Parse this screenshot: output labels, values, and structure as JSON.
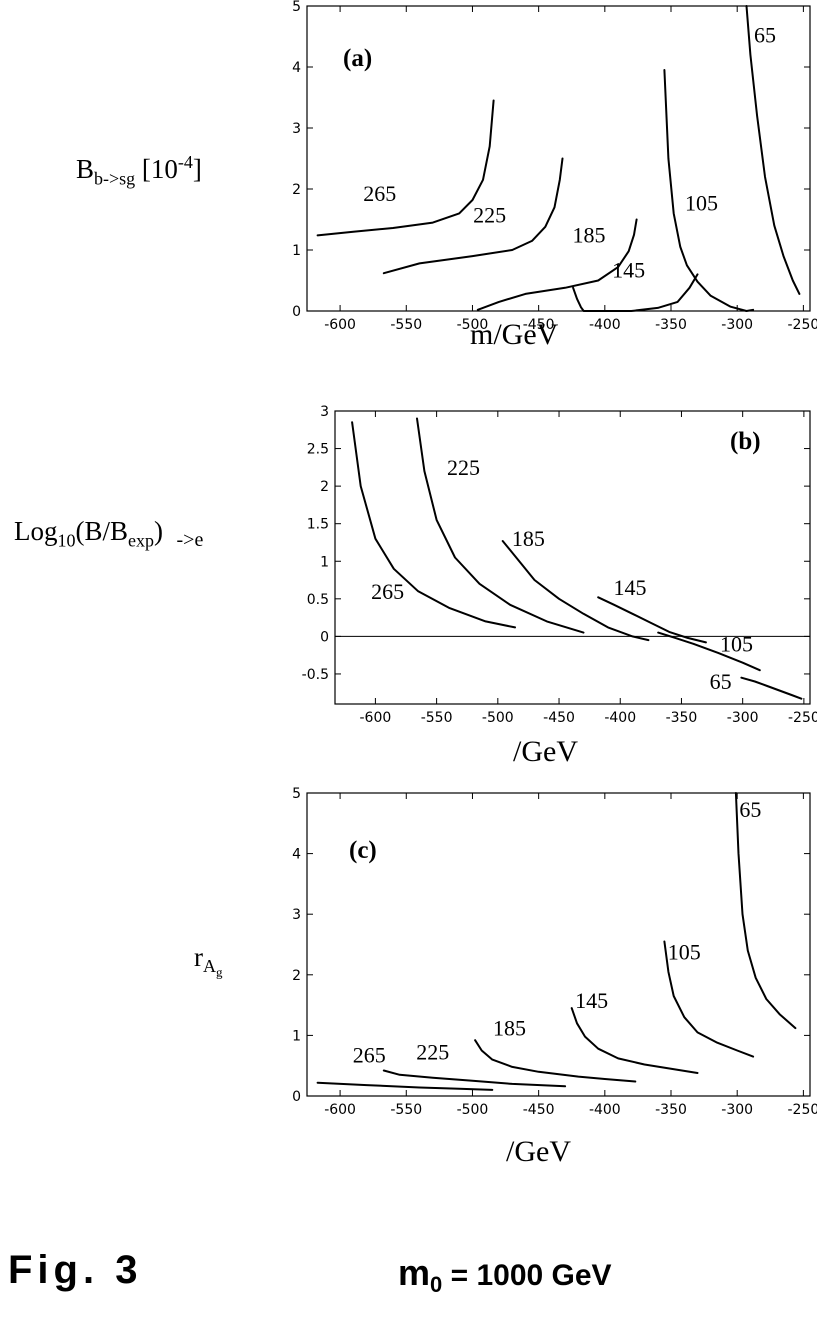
{
  "figure_label": "Fig. 3",
  "m0_label": {
    "symbol": "m",
    "subscript": "0",
    "rest": " = 1000 GeV"
  },
  "chart_data": [
    {
      "type": "line",
      "panel_label": "(a)",
      "ylabel": {
        "main": "B",
        "sub": "b->sg",
        "mid": " [10",
        "sup": "-4",
        "end": "]"
      },
      "xlabel": "m/GeV",
      "xlim": [
        -625,
        -245
      ],
      "ylim": [
        0,
        5
      ],
      "xticks": [
        -600,
        -550,
        -500,
        -450,
        -400,
        -350,
        -300,
        -250
      ],
      "yticks": [
        0,
        1,
        2,
        3,
        4,
        5
      ],
      "ytick_labels": [
        "0",
        "1",
        "2",
        "3",
        "4",
        "5"
      ],
      "series": [
        {
          "name": "265",
          "x": [
            -617,
            -590,
            -560,
            -530,
            -510,
            -500,
            -492,
            -487,
            -484
          ],
          "y": [
            1.24,
            1.3,
            1.36,
            1.45,
            1.6,
            1.82,
            2.15,
            2.7,
            3.45
          ]
        },
        {
          "name": "225",
          "x": [
            -567,
            -540,
            -500,
            -470,
            -455,
            -445,
            -438,
            -434,
            -432
          ],
          "y": [
            0.62,
            0.78,
            0.9,
            1.0,
            1.15,
            1.38,
            1.7,
            2.15,
            2.5
          ]
        },
        {
          "name": "185",
          "x": [
            -496,
            -480,
            -460,
            -430,
            -405,
            -390,
            -382,
            -378,
            -376
          ],
          "y": [
            0.02,
            0.15,
            0.28,
            0.38,
            0.5,
            0.72,
            0.98,
            1.25,
            1.5
          ]
        },
        {
          "name": "145",
          "x": [
            -424,
            -421,
            -418,
            -416,
            -405,
            -380,
            -360,
            -345,
            -336,
            -330
          ],
          "y": [
            0.38,
            0.2,
            0.06,
            0.0,
            0.0,
            0.0,
            0.05,
            0.15,
            0.38,
            0.6
          ]
        },
        {
          "name": "105",
          "x": [
            -355,
            -352,
            -348,
            -343,
            -338,
            -330,
            -320,
            -305,
            -293,
            -288
          ],
          "y": [
            3.95,
            2.5,
            1.6,
            1.05,
            0.75,
            0.48,
            0.25,
            0.07,
            0.0,
            0.02
          ]
        },
        {
          "name": "65",
          "x": [
            -293,
            -290,
            -285,
            -279,
            -272,
            -265,
            -258,
            -253
          ],
          "y": [
            5.0,
            4.2,
            3.2,
            2.2,
            1.4,
            0.9,
            0.5,
            0.28
          ]
        }
      ],
      "curve_labels": [
        {
          "text": "265",
          "x": -570,
          "y": 1.8
        },
        {
          "text": "225",
          "x": -487,
          "y": 1.45
        },
        {
          "text": "185",
          "x": -412,
          "y": 1.12
        },
        {
          "text": "145",
          "x": -382,
          "y": 0.55
        },
        {
          "text": "105",
          "x": -327,
          "y": 1.65
        },
        {
          "text": "65",
          "x": -279,
          "y": 4.4
        }
      ]
    },
    {
      "type": "line",
      "panel_label": "(b)",
      "ylabel": {
        "main": "Log",
        "sub": "10",
        "mid": "(B/B",
        "sub2": "exp",
        "end": ")",
        "tail": "->e"
      },
      "xlabel": "/GeV",
      "xlim": [
        -633,
        -245
      ],
      "ylim": [
        -0.9,
        3.0
      ],
      "xticks": [
        -600,
        -550,
        -500,
        -450,
        -400,
        -350,
        -300,
        -250
      ],
      "yticks": [
        -0.5,
        0,
        0.5,
        1,
        1.5,
        2,
        2.5,
        3
      ],
      "ytick_labels": [
        "-0.5",
        "0",
        "0.5",
        "1",
        "1.5",
        "2",
        "2.5",
        "3"
      ],
      "zero_line": true,
      "series": [
        {
          "name": "265",
          "x": [
            -619,
            -612,
            -600,
            -585,
            -565,
            -540,
            -510,
            -486
          ],
          "y": [
            2.85,
            2.0,
            1.3,
            0.9,
            0.6,
            0.38,
            0.2,
            0.12
          ]
        },
        {
          "name": "225",
          "x": [
            -566,
            -560,
            -550,
            -535,
            -515,
            -490,
            -460,
            -430
          ],
          "y": [
            2.9,
            2.2,
            1.55,
            1.05,
            0.7,
            0.42,
            0.2,
            0.05
          ]
        },
        {
          "name": "185",
          "x": [
            -496,
            -485,
            -470,
            -450,
            -430,
            -410,
            -390,
            -377
          ],
          "y": [
            1.27,
            1.05,
            0.75,
            0.5,
            0.3,
            0.12,
            0.0,
            -0.05
          ]
        },
        {
          "name": "145",
          "x": [
            -418,
            -405,
            -390,
            -375,
            -360,
            -345,
            -330
          ],
          "y": [
            0.52,
            0.42,
            0.3,
            0.18,
            0.06,
            -0.02,
            -0.08
          ]
        },
        {
          "name": "105",
          "x": [
            -369,
            -355,
            -340,
            -320,
            -300,
            -286
          ],
          "y": [
            0.05,
            -0.02,
            -0.1,
            -0.22,
            -0.35,
            -0.45
          ]
        },
        {
          "name": "65",
          "x": [
            -301,
            -290,
            -280,
            -270,
            -260,
            -252
          ],
          "y": [
            -0.55,
            -0.6,
            -0.66,
            -0.72,
            -0.78,
            -0.83
          ]
        }
      ],
      "curve_labels": [
        {
          "text": "265",
          "x": -590,
          "y": 0.5
        },
        {
          "text": "225",
          "x": -528,
          "y": 2.15
        },
        {
          "text": "185",
          "x": -475,
          "y": 1.2
        },
        {
          "text": "145",
          "x": -392,
          "y": 0.55
        },
        {
          "text": "105",
          "x": -305,
          "y": -0.2
        },
        {
          "text": "65",
          "x": -318,
          "y": -0.7
        }
      ]
    },
    {
      "type": "line",
      "panel_label": "(c)",
      "ylabel": {
        "main": "r",
        "sub": "A",
        "sub2": "g"
      },
      "xlabel": "/GeV",
      "xlim": [
        -625,
        -245
      ],
      "ylim": [
        0,
        5
      ],
      "xticks": [
        -600,
        -550,
        -500,
        -450,
        -400,
        -350,
        -300,
        -250
      ],
      "yticks": [
        0,
        1,
        2,
        3,
        4,
        5
      ],
      "ytick_labels": [
        "0",
        "1",
        "2",
        "3",
        "4",
        "5"
      ],
      "series": [
        {
          "name": "265",
          "x": [
            -617,
            -580,
            -540,
            -510,
            -485
          ],
          "y": [
            0.22,
            0.18,
            0.14,
            0.12,
            0.1
          ]
        },
        {
          "name": "225",
          "x": [
            -567,
            -555,
            -530,
            -500,
            -470,
            -430
          ],
          "y": [
            0.42,
            0.35,
            0.3,
            0.25,
            0.2,
            0.16
          ]
        },
        {
          "name": "185",
          "x": [
            -498,
            -493,
            -485,
            -470,
            -450,
            -420,
            -400,
            -377
          ],
          "y": [
            0.92,
            0.75,
            0.6,
            0.48,
            0.4,
            0.32,
            0.28,
            0.24
          ]
        },
        {
          "name": "145",
          "x": [
            -425,
            -421,
            -415,
            -405,
            -390,
            -370,
            -350,
            -330
          ],
          "y": [
            1.45,
            1.2,
            0.98,
            0.78,
            0.62,
            0.52,
            0.45,
            0.38
          ]
        },
        {
          "name": "105",
          "x": [
            -355,
            -352,
            -348,
            -340,
            -330,
            -315,
            -300,
            -288
          ],
          "y": [
            2.55,
            2.05,
            1.65,
            1.3,
            1.05,
            0.88,
            0.75,
            0.65
          ]
        },
        {
          "name": "65",
          "x": [
            -301,
            -299,
            -296,
            -292,
            -286,
            -278,
            -268,
            -256
          ],
          "y": [
            5.0,
            4.0,
            3.0,
            2.4,
            1.95,
            1.6,
            1.35,
            1.12
          ]
        }
      ],
      "curve_labels": [
        {
          "text": "265",
          "x": -578,
          "y": 0.55
        },
        {
          "text": "225",
          "x": -530,
          "y": 0.6
        },
        {
          "text": "185",
          "x": -472,
          "y": 1.0
        },
        {
          "text": "145",
          "x": -410,
          "y": 1.45
        },
        {
          "text": "105",
          "x": -340,
          "y": 2.25
        },
        {
          "text": "65",
          "x": -290,
          "y": 4.6
        }
      ]
    }
  ]
}
